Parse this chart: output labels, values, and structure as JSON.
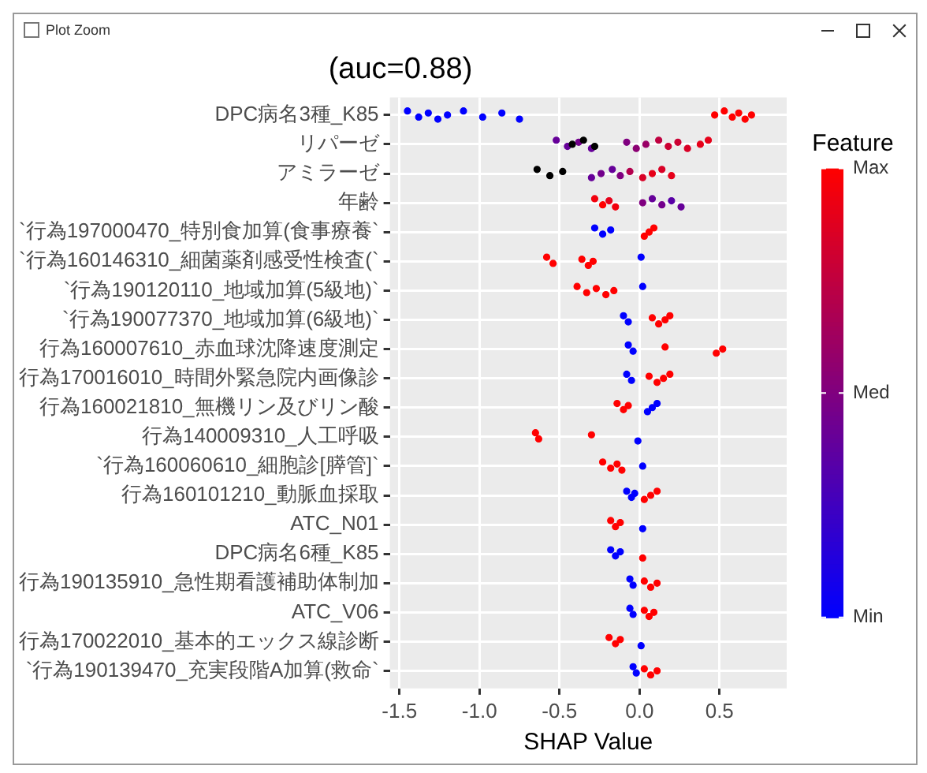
{
  "chart_data": {
    "type": "scatter",
    "orientation": "horizontal",
    "title": "(auc=0.88)",
    "xlabel": "SHAP Value",
    "clabel": "Feature",
    "annotations": [
      "Plot Zoom"
    ],
    "grid": true,
    "legend": false,
    "marker": "circle",
    "xlim": [
      -1.56,
      0.92
    ],
    "xticks": [
      -1.5,
      {
        "value": -1,
        "label": "-1.0"
      },
      -0.5,
      {
        "value": 0,
        "label": "0.0"
      },
      0.5
    ],
    "clim": [
      0,
      1
    ],
    "cticks": [
      {
        "value": 0,
        "label": "Min"
      },
      {
        "value": 0.5,
        "label": "Med"
      },
      {
        "value": 1,
        "label": "Max"
      }
    ],
    "categories": [
      "DPC病名3種_K85",
      "リパーゼ",
      "アミラーゼ",
      "年齢",
      "`行為197000470_特別食加算(食事療養`",
      "`行為160146310_細菌薬剤感受性検査(`",
      "`行為190120110_地域加算(5級地)`",
      "`行為190077370_地域加算(6級地)`",
      "行為160007610_赤血球沈降速度測定",
      "行為170016010_時間外緊急院内画像診",
      "行為160021810_無機リン及びリン酸",
      "行為140009310_人工呼吸",
      "`行為160060610_細胞診[膵管]`",
      "行為160101210_動脈血採取",
      "ATC_N01",
      "DPC病名6種_K85",
      "行為190135910_急性期看護補助体制加",
      "ATC_V06",
      "行為170022010_基本的エックス線診断",
      "`行為190139470_充実段階A加算(救命`"
    ],
    "series": [
      {
        "x": [
          "DPC病名3種_K85",
          "DPC病名3種_K85",
          "DPC病名3種_K85",
          "DPC病名3種_K85",
          "DPC病名3種_K85",
          "DPC病名3種_K85",
          "DPC病名3種_K85",
          "DPC病名3種_K85",
          "DPC病名3種_K85",
          "DPC病名3種_K85",
          "DPC病名3種_K85",
          "DPC病名3種_K85",
          "DPC病名3種_K85",
          "DPC病名3種_K85",
          "DPC病名3種_K85"
        ],
        "values": [
          -1.45,
          -1.38,
          -1.32,
          -1.26,
          -1.2,
          -1.1,
          -0.98,
          -0.86,
          -0.75,
          0.47,
          0.53,
          0.58,
          0.62,
          0.66,
          0.7
        ],
        "cvalues": [
          0,
          0,
          0,
          0,
          0,
          0,
          0,
          0,
          0,
          1,
          1,
          1,
          1,
          1,
          1
        ],
        "colors": [
          "#0000ff",
          "#0000ff",
          "#0000ff",
          "#0000ff",
          "#0000ff",
          "#0000ff",
          "#0000ff",
          "#0000ff",
          "#0000ff",
          "#ff0000",
          "#ff0000",
          "#ff0000",
          "#ff0000",
          "#ff0000",
          "#ff0000"
        ]
      },
      {
        "x": [
          "リパーゼ",
          "リパーゼ",
          "リパーゼ",
          "リパーゼ",
          "リパーゼ",
          "リパーゼ",
          "リパーゼ",
          "リパーゼ",
          "リパーゼ",
          "リパーゼ",
          "リパーゼ",
          "リパーゼ",
          "リパーゼ",
          "リパーゼ",
          "リパーゼ",
          "リパーゼ"
        ],
        "values": [
          -0.52,
          -0.45,
          -0.38,
          -0.3,
          -0.42,
          -0.35,
          -0.28,
          -0.08,
          -0.02,
          0.04,
          0.12,
          0.18,
          0.24,
          0.3,
          0.38,
          0.43
        ],
        "cvalues": [
          0.4,
          0.4,
          0.45,
          0.4,
          null,
          null,
          null,
          0.5,
          0.55,
          0.6,
          0.75,
          0.8,
          0.8,
          0.85,
          0.9,
          0.9
        ],
        "colors": [
          "#660099",
          "#660099",
          "#73008c",
          "#660099",
          "#000000",
          "#000000",
          "#000000",
          "#800080",
          "#8c0073",
          "#990066",
          "#bf0040",
          "#cc0033",
          "#cc0033",
          "#d90026",
          "#e6001a",
          "#e6001a"
        ]
      },
      {
        "x": [
          "アミラーゼ",
          "アミラーゼ",
          "アミラーゼ",
          "アミラーゼ",
          "アミラーゼ",
          "アミラーゼ",
          "アミラーゼ",
          "アミラーゼ",
          "アミラーゼ",
          "アミラーゼ",
          "アミラーゼ",
          "アミラーゼ"
        ],
        "values": [
          -0.64,
          -0.56,
          -0.48,
          -0.3,
          -0.24,
          -0.17,
          -0.12,
          -0.06,
          0.02,
          0.08,
          0.14,
          0.2
        ],
        "cvalues": [
          null,
          null,
          null,
          0.4,
          0.45,
          0.4,
          0.5,
          0.7,
          0.85,
          0.9,
          0.85,
          0.9
        ],
        "colors": [
          "#000000",
          "#000000",
          "#000000",
          "#660099",
          "#73008c",
          "#660099",
          "#800080",
          "#b3004d",
          "#d90026",
          "#e6001a",
          "#d90026",
          "#e6001a"
        ]
      },
      {
        "x": [
          "年齢",
          "年齢",
          "年齢",
          "年齢",
          "年齢",
          "年齢",
          "年齢",
          "年齢",
          "年齢"
        ],
        "values": [
          -0.28,
          -0.23,
          -0.19,
          -0.15,
          0.02,
          0.08,
          0.14,
          0.2,
          0.26
        ],
        "cvalues": [
          0.95,
          1,
          0.9,
          0.95,
          0.5,
          0.4,
          0.45,
          0.35,
          0.4
        ],
        "colors": [
          "#f2000d",
          "#ff0000",
          "#e6001a",
          "#f2000d",
          "#800080",
          "#660099",
          "#73008c",
          "#5900a6",
          "#660099"
        ]
      },
      {
        "x": [
          "`行為197000470_特別食加算(食事療養`",
          "`行為197000470_特別食加算(食事療養`",
          "`行為197000470_特別食加算(食事療養`",
          "`行為197000470_特別食加算(食事療養`",
          "`行為197000470_特別食加算(食事療養`",
          "`行為197000470_特別食加算(食事療養`"
        ],
        "values": [
          -0.28,
          -0.23,
          -0.18,
          0.03,
          0.06,
          0.09
        ],
        "cvalues": [
          0,
          0,
          0,
          1,
          1,
          1
        ],
        "colors": [
          "#0000ff",
          "#0000ff",
          "#0000ff",
          "#ff0000",
          "#ff0000",
          "#ff0000"
        ]
      },
      {
        "x": [
          "`行為160146310_細菌薬剤感受性検査(`",
          "`行為160146310_細菌薬剤感受性検査(`",
          "`行為160146310_細菌薬剤感受性検査(`",
          "`行為160146310_細菌薬剤感受性検査(`",
          "`行為160146310_細菌薬剤感受性検査(`",
          "`行為160146310_細菌薬剤感受性検査(`"
        ],
        "values": [
          -0.58,
          -0.54,
          -0.36,
          -0.32,
          -0.29,
          0.01
        ],
        "cvalues": [
          1,
          1,
          1,
          1,
          1,
          0
        ],
        "colors": [
          "#ff0000",
          "#ff0000",
          "#ff0000",
          "#ff0000",
          "#ff0000",
          "#0000ff"
        ]
      },
      {
        "x": [
          "`行為190120110_地域加算(5級地)`",
          "`行為190120110_地域加算(5級地)`",
          "`行為190120110_地域加算(5級地)`",
          "`行為190120110_地域加算(5級地)`",
          "`行為190120110_地域加算(5級地)`",
          "`行為190120110_地域加算(5級地)`"
        ],
        "values": [
          -0.39,
          -0.33,
          -0.27,
          -0.21,
          -0.16,
          0.02
        ],
        "cvalues": [
          1,
          1,
          1,
          1,
          1,
          0
        ],
        "colors": [
          "#ff0000",
          "#ff0000",
          "#ff0000",
          "#ff0000",
          "#ff0000",
          "#0000ff"
        ]
      },
      {
        "x": [
          "`行為190077370_地域加算(6級地)`",
          "`行為190077370_地域加算(6級地)`",
          "`行為190077370_地域加算(6級地)`",
          "`行為190077370_地域加算(6級地)`",
          "`行為190077370_地域加算(6級地)`",
          "`行為190077370_地域加算(6級地)`"
        ],
        "values": [
          -0.1,
          -0.07,
          0.08,
          0.12,
          0.16,
          0.19
        ],
        "cvalues": [
          0,
          0,
          1,
          1,
          1,
          1
        ],
        "colors": [
          "#0000ff",
          "#0000ff",
          "#ff0000",
          "#ff0000",
          "#ff0000",
          "#ff0000"
        ]
      },
      {
        "x": [
          "行為160007610_赤血球沈降速度測定",
          "行為160007610_赤血球沈降速度測定",
          "行為160007610_赤血球沈降速度測定",
          "行為160007610_赤血球沈降速度測定",
          "行為160007610_赤血球沈降速度測定"
        ],
        "values": [
          -0.07,
          -0.04,
          0.16,
          0.48,
          0.52
        ],
        "cvalues": [
          0,
          0,
          1,
          1,
          1
        ],
        "colors": [
          "#0000ff",
          "#0000ff",
          "#ff0000",
          "#ff0000",
          "#ff0000"
        ]
      },
      {
        "x": [
          "行為170016010_時間外緊急院内画像診",
          "行為170016010_時間外緊急院内画像診",
          "行為170016010_時間外緊急院内画像診",
          "行為170016010_時間外緊急院内画像診",
          "行為170016010_時間外緊急院内画像診",
          "行為170016010_時間外緊急院内画像診"
        ],
        "values": [
          -0.08,
          -0.05,
          0.06,
          0.11,
          0.15,
          0.19
        ],
        "cvalues": [
          0,
          0,
          1,
          1,
          1,
          1
        ],
        "colors": [
          "#0000ff",
          "#0000ff",
          "#ff0000",
          "#ff0000",
          "#ff0000",
          "#ff0000"
        ]
      },
      {
        "x": [
          "行為160021810_無機リン及びリン酸",
          "行為160021810_無機リン及びリン酸",
          "行為160021810_無機リン及びリン酸",
          "行為160021810_無機リン及びリン酸",
          "行為160021810_無機リン及びリン酸",
          "行為160021810_無機リン及びリン酸"
        ],
        "values": [
          -0.14,
          -0.1,
          -0.07,
          0.05,
          0.08,
          0.11
        ],
        "cvalues": [
          1,
          1,
          1,
          0,
          0,
          0
        ],
        "colors": [
          "#ff0000",
          "#ff0000",
          "#ff0000",
          "#0000ff",
          "#0000ff",
          "#0000ff"
        ]
      },
      {
        "x": [
          "行為140009310_人工呼吸",
          "行為140009310_人工呼吸",
          "行為140009310_人工呼吸",
          "行為140009310_人工呼吸"
        ],
        "values": [
          -0.65,
          -0.63,
          -0.3,
          -0.01
        ],
        "cvalues": [
          1,
          1,
          1,
          0
        ],
        "colors": [
          "#ff0000",
          "#ff0000",
          "#ff0000",
          "#0000ff"
        ]
      },
      {
        "x": [
          "`行為160060610_細胞診[膵管]`",
          "`行為160060610_細胞診[膵管]`",
          "`行為160060610_細胞診[膵管]`",
          "`行為160060610_細胞診[膵管]`",
          "`行為160060610_細胞診[膵管]`"
        ],
        "values": [
          -0.23,
          -0.18,
          -0.14,
          -0.11,
          0.02
        ],
        "cvalues": [
          1,
          1,
          1,
          1,
          0
        ],
        "colors": [
          "#ff0000",
          "#ff0000",
          "#ff0000",
          "#ff0000",
          "#0000ff"
        ]
      },
      {
        "x": [
          "行為160101210_動脈血採取",
          "行為160101210_動脈血採取",
          "行為160101210_動脈血採取",
          "行為160101210_動脈血採取",
          "行為160101210_動脈血採取",
          "行為160101210_動脈血採取"
        ],
        "values": [
          -0.08,
          -0.05,
          -0.03,
          0.03,
          0.07,
          0.11
        ],
        "cvalues": [
          0,
          0,
          0,
          1,
          1,
          1
        ],
        "colors": [
          "#0000ff",
          "#0000ff",
          "#0000ff",
          "#ff0000",
          "#ff0000",
          "#ff0000"
        ]
      },
      {
        "x": [
          "ATC_N01",
          "ATC_N01",
          "ATC_N01",
          "ATC_N01"
        ],
        "values": [
          -0.18,
          -0.15,
          -0.12,
          0.02
        ],
        "cvalues": [
          1,
          1,
          1,
          0
        ],
        "colors": [
          "#ff0000",
          "#ff0000",
          "#ff0000",
          "#0000ff"
        ]
      },
      {
        "x": [
          "DPC病名6種_K85",
          "DPC病名6種_K85",
          "DPC病名6種_K85",
          "DPC病名6種_K85"
        ],
        "values": [
          -0.18,
          -0.15,
          -0.12,
          0.02
        ],
        "cvalues": [
          0,
          0,
          0,
          1
        ],
        "colors": [
          "#0000ff",
          "#0000ff",
          "#0000ff",
          "#ff0000"
        ]
      },
      {
        "x": [
          "行為190135910_急性期看護補助体制加",
          "行為190135910_急性期看護補助体制加",
          "行為190135910_急性期看護補助体制加",
          "行為190135910_急性期看護補助体制加",
          "行為190135910_急性期看護補助体制加"
        ],
        "values": [
          -0.06,
          -0.04,
          0.03,
          0.07,
          0.11
        ],
        "cvalues": [
          0,
          0,
          1,
          1,
          1
        ],
        "colors": [
          "#0000ff",
          "#0000ff",
          "#ff0000",
          "#ff0000",
          "#ff0000"
        ]
      },
      {
        "x": [
          "ATC_V06",
          "ATC_V06",
          "ATC_V06",
          "ATC_V06",
          "ATC_V06"
        ],
        "values": [
          -0.06,
          -0.04,
          0.03,
          0.06,
          0.09
        ],
        "cvalues": [
          0,
          0,
          1,
          1,
          1
        ],
        "colors": [
          "#0000ff",
          "#0000ff",
          "#ff0000",
          "#ff0000",
          "#ff0000"
        ]
      },
      {
        "x": [
          "行為170022010_基本的エックス線診断",
          "行為170022010_基本的エックス線診断",
          "行為170022010_基本的エックス線診断",
          "行為170022010_基本的エックス線診断"
        ],
        "values": [
          -0.19,
          -0.15,
          -0.12,
          0.01
        ],
        "cvalues": [
          1,
          1,
          1,
          0
        ],
        "colors": [
          "#ff0000",
          "#ff0000",
          "#ff0000",
          "#0000ff"
        ]
      },
      {
        "x": [
          "`行為190139470_充実段階A加算(救命`",
          "`行為190139470_充実段階A加算(救命`",
          "`行為190139470_充実段階A加算(救命`",
          "`行為190139470_充実段階A加算(救命`",
          "`行為190139470_充実段階A加算(救命`"
        ],
        "values": [
          -0.04,
          -0.02,
          0.03,
          0.07,
          0.11
        ],
        "cvalues": [
          0,
          0,
          1,
          1,
          1
        ],
        "colors": [
          "#0000ff",
          "#0000ff",
          "#ff0000",
          "#ff0000",
          "#ff0000"
        ]
      }
    ]
  }
}
